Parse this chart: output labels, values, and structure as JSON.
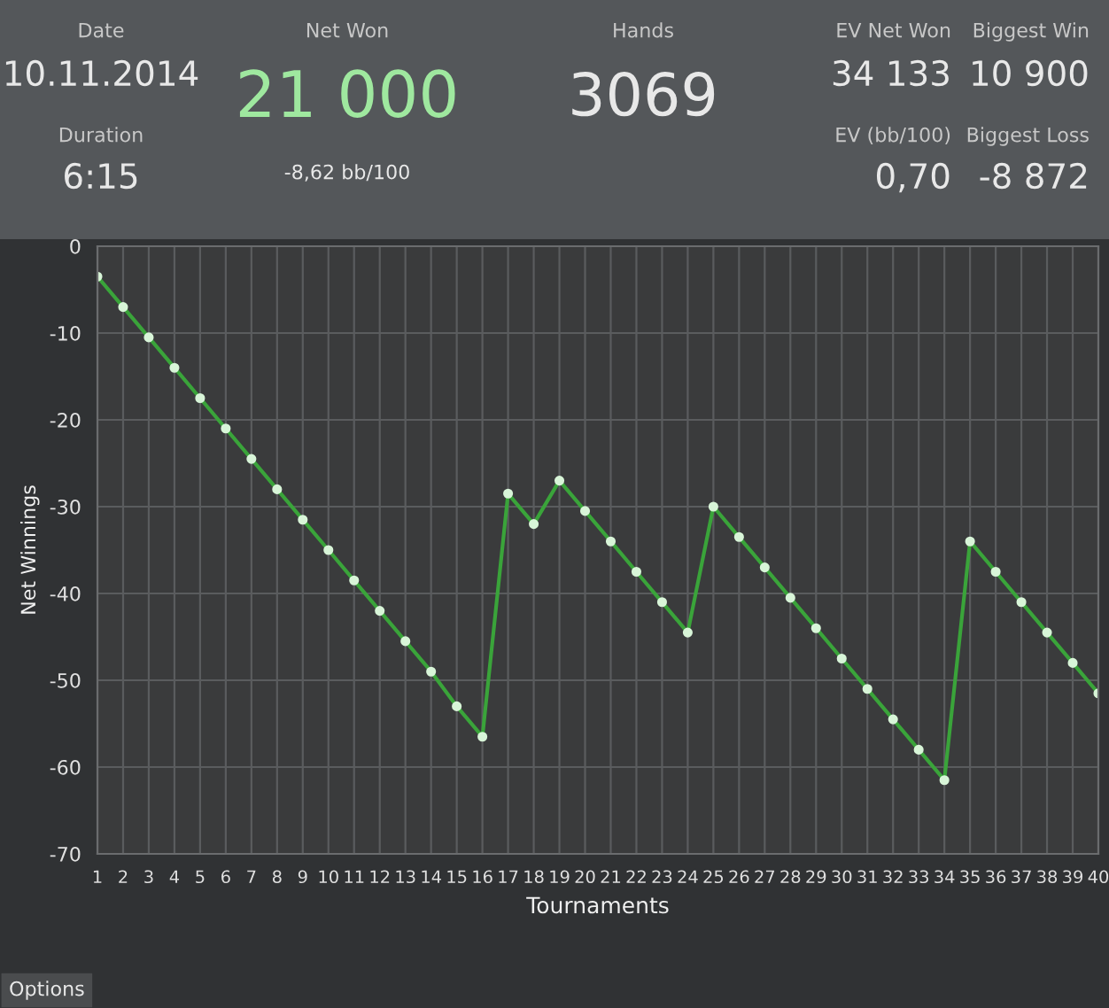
{
  "chart_data": [
    {
      "type": "other",
      "annotations": [
        "Date",
        "10.11.2014",
        "Duration",
        "6:15",
        "Net Won",
        "21 000",
        "-8,62 bb/100",
        "Hands",
        "3069",
        "EV Net Won",
        "34 133",
        "Biggest Win",
        "10 900",
        "EV (bb/100)",
        "0,70",
        "Biggest Loss",
        "-8 872"
      ]
    },
    {
      "type": "line",
      "xlabel": "Tournaments",
      "ylabel": "Net Winnings",
      "x": [
        1,
        2,
        3,
        4,
        5,
        6,
        7,
        8,
        9,
        10,
        11,
        12,
        13,
        14,
        15,
        16,
        17,
        18,
        19,
        20,
        21,
        22,
        23,
        24,
        25,
        26,
        27,
        28,
        29,
        30,
        31,
        32,
        33,
        34,
        35,
        36,
        37,
        38,
        39,
        40
      ],
      "series": [
        {
          "color": "#3aa43a",
          "values": [
            -3.5,
            -7,
            -10.5,
            -14,
            -17.5,
            -21,
            -24.5,
            -28,
            -31.5,
            -35,
            -38.5,
            -42,
            -45.5,
            -49,
            -53,
            -56.5,
            -28.5,
            -32,
            -27,
            -30.5,
            -34,
            -37.5,
            -41,
            -44.5,
            -30,
            -33.5,
            -37,
            -40.5,
            -44,
            -47.5,
            -51,
            -54.5,
            -58,
            -61.5,
            -34,
            -37.5,
            -41,
            -44.5,
            -48,
            -51.5
          ]
        }
      ],
      "xlim": [
        1,
        40
      ],
      "xticks": [
        1,
        2,
        3,
        4,
        5,
        6,
        7,
        8,
        9,
        10,
        11,
        12,
        13,
        14,
        15,
        16,
        17,
        18,
        19,
        20,
        21,
        22,
        23,
        24,
        25,
        26,
        27,
        28,
        29,
        30,
        31,
        32,
        33,
        34,
        35,
        36,
        37,
        38,
        39,
        40
      ],
      "ylim": [
        -70,
        0
      ],
      "yticks": [
        -70,
        -60,
        -50,
        -40,
        -30,
        -20,
        -10,
        0
      ],
      "grid": true,
      "marker": "circle",
      "line_style": "solid",
      "annotations": [
        "Options"
      ]
    }
  ]
}
